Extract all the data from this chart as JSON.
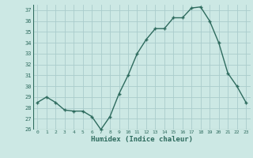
{
  "x": [
    0,
    1,
    2,
    3,
    4,
    5,
    6,
    7,
    8,
    9,
    10,
    11,
    12,
    13,
    14,
    15,
    16,
    17,
    18,
    19,
    20,
    21,
    22,
    23
  ],
  "y": [
    28.5,
    29.0,
    28.5,
    27.8,
    27.7,
    27.7,
    27.2,
    26.0,
    27.2,
    29.3,
    31.0,
    33.0,
    34.3,
    35.3,
    35.3,
    36.3,
    36.3,
    37.2,
    37.3,
    36.0,
    34.0,
    31.2,
    30.0,
    28.5
  ],
  "line_color": "#2e6b5e",
  "marker": "+",
  "bg_color": "#cce8e4",
  "grid_color": "#aacccc",
  "axis_label_color": "#2e6b5e",
  "tick_color": "#2e6b5e",
  "xlabel": "Humidex (Indice chaleur)",
  "ylim": [
    26,
    37.5
  ],
  "yticks": [
    26,
    27,
    28,
    29,
    30,
    31,
    32,
    33,
    34,
    35,
    36,
    37
  ],
  "xticks": [
    0,
    1,
    2,
    3,
    4,
    5,
    6,
    7,
    8,
    9,
    10,
    11,
    12,
    13,
    14,
    15,
    16,
    17,
    18,
    19,
    20,
    21,
    22,
    23
  ],
  "xtick_labels": [
    "0",
    "1",
    "2",
    "3",
    "4",
    "5",
    "6",
    "7",
    "8",
    "9",
    "10",
    "11",
    "12",
    "13",
    "14",
    "15",
    "16",
    "17",
    "18",
    "19",
    "20",
    "21",
    "22",
    "23"
  ],
  "linewidth": 1.0,
  "markersize": 3.5
}
